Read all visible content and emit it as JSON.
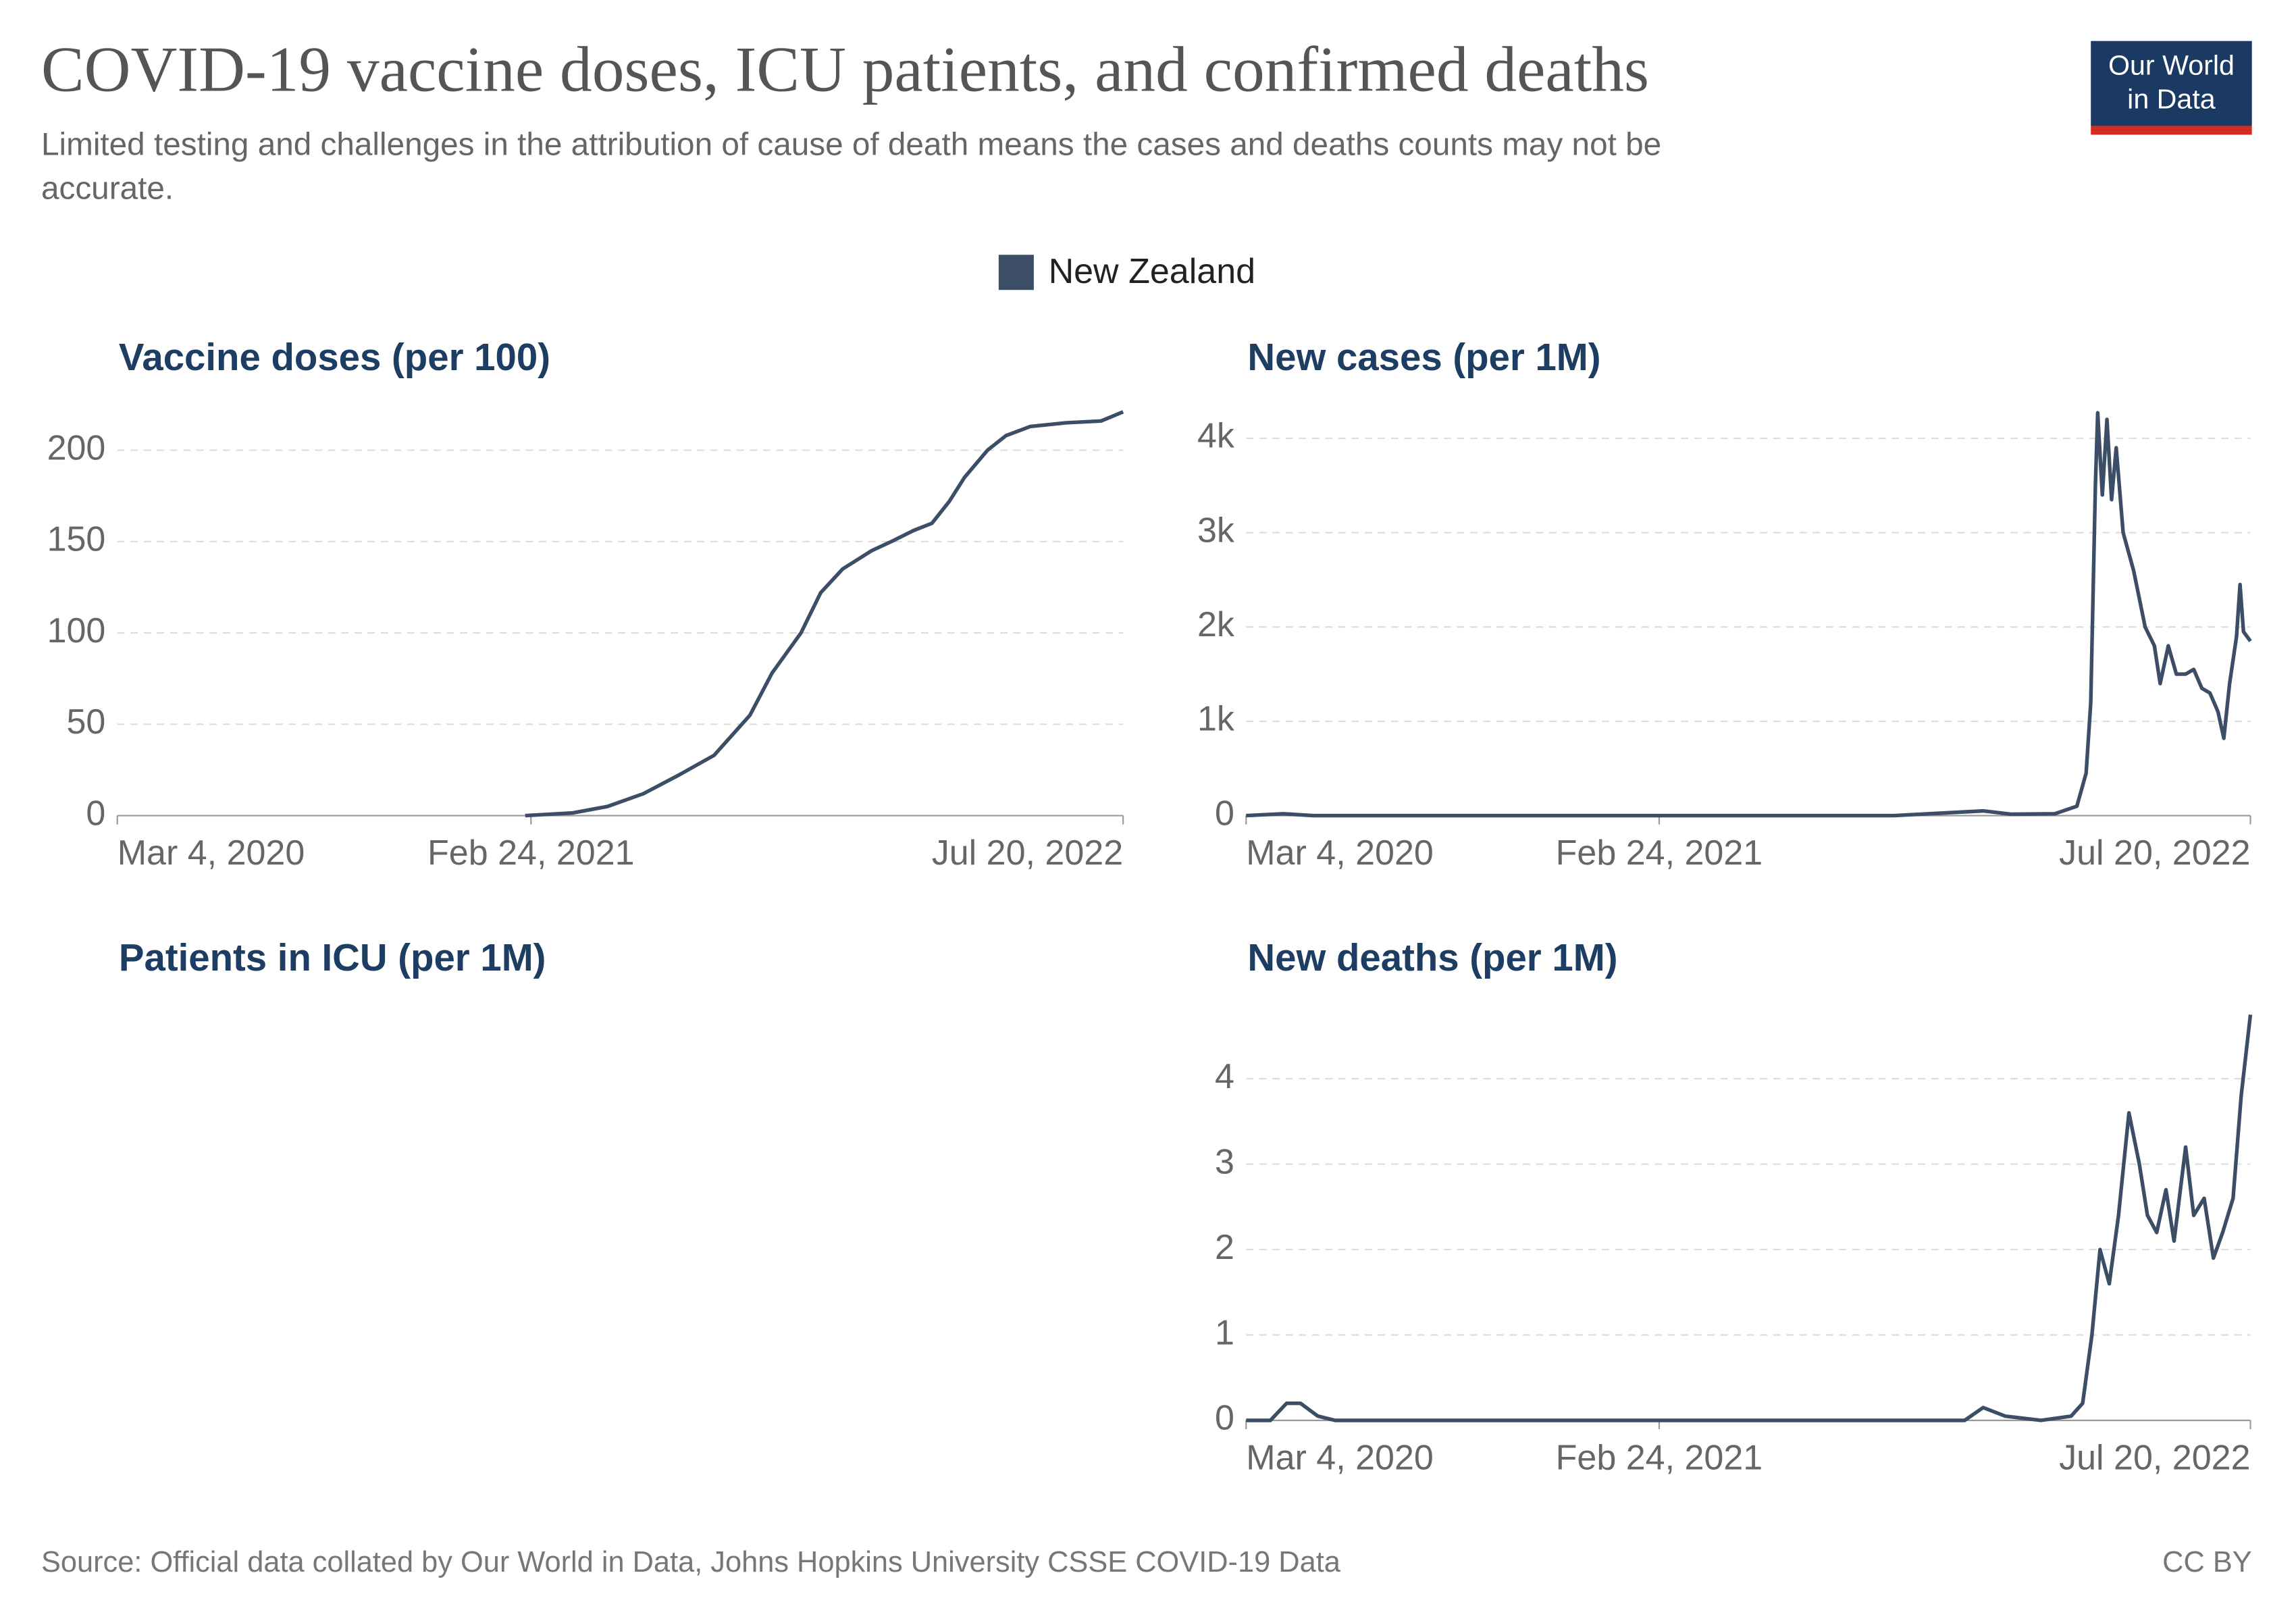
{
  "header": {
    "title": "COVID-19 vaccine doses, ICU patients, and confirmed deaths",
    "subtitle_lines": [
      "Limited testing and challenges in the attribution of cause of death means the cases and deaths counts may not be",
      "accurate."
    ],
    "logo_lines": [
      "Our World",
      "in Data"
    ]
  },
  "legend": {
    "name": "New Zealand",
    "color": "#3c4e66"
  },
  "footer": {
    "source": "Source: Official data collated by Our World in Data, Johns Hopkins University CSSE COVID-19 Data",
    "license": "CC BY"
  },
  "chart_data": [
    {
      "type": "line",
      "title": "Vaccine doses (per 100)",
      "xlim": [
        "2020-03-04",
        "2022-07-20"
      ],
      "xticks": [
        {
          "value": "2020-03-04",
          "label": "Mar 4, 2020"
        },
        {
          "value": "2021-02-24",
          "label": "Feb 24, 2021"
        },
        {
          "value": "2022-07-20",
          "label": "Jul 20, 2022"
        }
      ],
      "ylim": [
        0,
        222
      ],
      "yticks": [
        0,
        50,
        100,
        150,
        200
      ],
      "grid": true,
      "series": [
        {
          "color": "#3c4e66",
          "x": [
            "2021-02-19",
            "2021-04-01",
            "2021-05-01",
            "2021-06-01",
            "2021-07-01",
            "2021-08-01",
            "2021-09-01",
            "2021-09-20",
            "2021-10-15",
            "2021-11-01",
            "2021-11-20",
            "2021-12-15",
            "2022-01-01",
            "2022-01-20",
            "2022-02-05",
            "2022-02-20",
            "2022-03-05",
            "2022-03-25",
            "2022-04-10",
            "2022-05-01",
            "2022-06-01",
            "2022-07-01",
            "2022-07-20"
          ],
          "values": [
            0,
            1.5,
            5,
            12,
            22,
            33,
            55,
            78,
            100,
            122,
            135,
            145,
            150,
            156,
            160,
            172,
            185,
            200,
            208,
            213,
            215,
            216,
            221
          ]
        }
      ]
    },
    {
      "type": "line",
      "title": "New cases (per 1M)",
      "xlim": [
        "2020-03-04",
        "2022-07-20"
      ],
      "xticks": [
        {
          "value": "2020-03-04",
          "label": "Mar 4, 2020"
        },
        {
          "value": "2021-02-24",
          "label": "Feb 24, 2021"
        },
        {
          "value": "2022-07-20",
          "label": "Jul 20, 2022"
        }
      ],
      "ylim": [
        0,
        4300
      ],
      "yticks": [
        0,
        {
          "value": 1000,
          "label": "1k"
        },
        {
          "value": 2000,
          "label": "2k"
        },
        {
          "value": 3000,
          "label": "3k"
        },
        {
          "value": 4000,
          "label": "4k"
        }
      ],
      "grid": true,
      "series": [
        {
          "color": "#3c4e66",
          "x": [
            "2020-03-04",
            "2020-04-05",
            "2020-05-01",
            "2021-09-15",
            "2021-10-15",
            "2021-12-01",
            "2021-12-25",
            "2022-02-01",
            "2022-02-20",
            "2022-02-28",
            "2022-03-04",
            "2022-03-08",
            "2022-03-10",
            "2022-03-14",
            "2022-03-18",
            "2022-03-22",
            "2022-03-26",
            "2022-04-01",
            "2022-04-10",
            "2022-04-20",
            "2022-04-28",
            "2022-05-03",
            "2022-05-10",
            "2022-05-17",
            "2022-05-25",
            "2022-06-01",
            "2022-06-08",
            "2022-06-15",
            "2022-06-22",
            "2022-06-27",
            "2022-07-02",
            "2022-07-08",
            "2022-07-11",
            "2022-07-14",
            "2022-07-20"
          ],
          "values": [
            0,
            20,
            0,
            0,
            20,
            50,
            15,
            20,
            100,
            450,
            1200,
            3500,
            4270,
            3400,
            4200,
            3350,
            3900,
            3000,
            2600,
            2000,
            1800,
            1400,
            1800,
            1500,
            1500,
            1550,
            1350,
            1300,
            1100,
            820,
            1400,
            1900,
            2450,
            1950,
            1850
          ]
        }
      ]
    },
    {
      "title": "Patients in ICU (per 1M)"
    },
    {
      "type": "line",
      "title": "New deaths (per 1M)",
      "xlim": [
        "2020-03-04",
        "2022-07-20"
      ],
      "xticks": [
        {
          "value": "2020-03-04",
          "label": "Mar 4, 2020"
        },
        {
          "value": "2021-02-24",
          "label": "Feb 24, 2021"
        },
        {
          "value": "2022-07-20",
          "label": "Jul 20, 2022"
        }
      ],
      "ylim": [
        0,
        4.8
      ],
      "yticks": [
        0,
        1,
        2,
        3,
        4
      ],
      "grid": true,
      "series": [
        {
          "color": "#3c4e66",
          "x": [
            "2020-03-04",
            "2020-03-25",
            "2020-04-08",
            "2020-04-20",
            "2020-05-05",
            "2020-05-20",
            "2021-11-15",
            "2021-12-01",
            "2021-12-20",
            "2022-01-20",
            "2022-02-15",
            "2022-02-25",
            "2022-03-05",
            "2022-03-12",
            "2022-03-20",
            "2022-03-28",
            "2022-04-06",
            "2022-04-15",
            "2022-04-22",
            "2022-04-30",
            "2022-05-08",
            "2022-05-15",
            "2022-05-25",
            "2022-06-01",
            "2022-06-10",
            "2022-06-18",
            "2022-06-26",
            "2022-07-05",
            "2022-07-12",
            "2022-07-20"
          ],
          "values": [
            0,
            0,
            0.2,
            0.2,
            0.05,
            0,
            0,
            0.15,
            0.05,
            0,
            0.05,
            0.2,
            1,
            2,
            1.6,
            2.4,
            3.6,
            3,
            2.4,
            2.2,
            2.7,
            2.1,
            3.2,
            2.4,
            2.6,
            1.9,
            2.2,
            2.6,
            3.8,
            4.75
          ]
        }
      ]
    }
  ]
}
